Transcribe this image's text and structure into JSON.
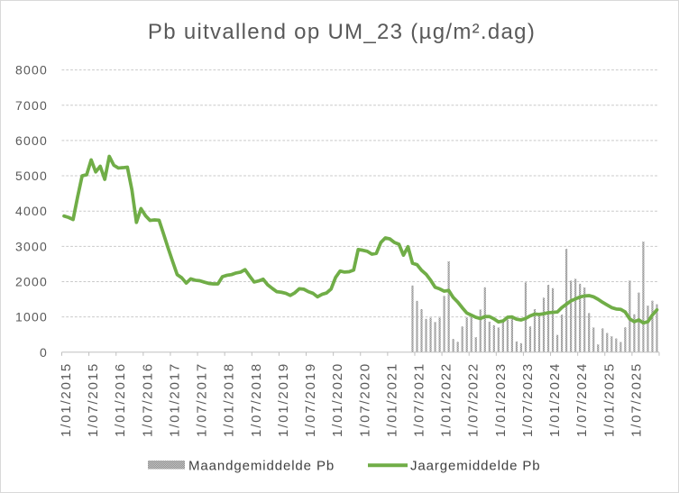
{
  "chart_data": {
    "type": "combo",
    "title": "Pb uitvallend op UM_23 (µg/m².dag)",
    "xlabel": "",
    "ylabel": "",
    "ylim": [
      0,
      8000
    ],
    "ytick_step": 1000,
    "ytick_labels": [
      "0",
      "1000",
      "2000",
      "3000",
      "4000",
      "5000",
      "6000",
      "7000",
      "8000"
    ],
    "xtick_every": 6,
    "grid": "horizontal-dashed",
    "legend_position": "bottom",
    "categories": [
      "1/01/2015",
      "1/02/2015",
      "1/03/2015",
      "1/04/2015",
      "1/05/2015",
      "1/06/2015",
      "1/07/2015",
      "1/08/2015",
      "1/09/2015",
      "1/10/2015",
      "1/11/2015",
      "1/12/2015",
      "1/01/2016",
      "1/02/2016",
      "1/03/2016",
      "1/04/2016",
      "1/05/2016",
      "1/06/2016",
      "1/07/2016",
      "1/08/2016",
      "1/09/2016",
      "1/10/2016",
      "1/11/2016",
      "1/12/2016",
      "1/01/2017",
      "1/02/2017",
      "1/03/2017",
      "1/04/2017",
      "1/05/2017",
      "1/06/2017",
      "1/07/2017",
      "1/08/2017",
      "1/09/2017",
      "1/10/2017",
      "1/11/2017",
      "1/12/2017",
      "1/01/2018",
      "1/02/2018",
      "1/03/2018",
      "1/04/2018",
      "1/05/2018",
      "1/06/2018",
      "1/07/2018",
      "1/08/2018",
      "1/09/2018",
      "1/10/2018",
      "1/11/2018",
      "1/12/2018",
      "1/01/2019",
      "1/02/2019",
      "1/03/2019",
      "1/04/2019",
      "1/05/2019",
      "1/06/2019",
      "1/07/2019",
      "1/08/2019",
      "1/09/2019",
      "1/10/2019",
      "1/11/2019",
      "1/12/2019",
      "1/01/2020",
      "1/02/2020",
      "1/03/2020",
      "1/04/2020",
      "1/05/2020",
      "1/06/2020",
      "1/07/2020",
      "1/08/2020",
      "1/09/2020",
      "1/10/2020",
      "1/11/2020",
      "1/12/2020",
      "1/01/2021",
      "1/02/2021",
      "1/03/2021",
      "1/04/2021",
      "1/05/2021",
      "1/06/2021",
      "1/07/2021",
      "1/08/2021",
      "1/09/2021",
      "1/10/2021",
      "1/11/2021",
      "1/12/2021",
      "1/01/2022",
      "1/02/2022",
      "1/03/2022",
      "1/04/2022",
      "1/05/2022",
      "1/06/2022",
      "1/07/2022",
      "1/08/2022",
      "1/09/2022",
      "1/10/2022",
      "1/11/2022",
      "1/12/2022",
      "1/01/2023",
      "1/02/2023",
      "1/03/2023",
      "1/04/2023",
      "1/05/2023",
      "1/06/2023",
      "1/07/2023",
      "1/08/2023",
      "1/09/2023",
      "1/10/2023",
      "1/11/2023",
      "1/12/2023",
      "1/01/2024",
      "1/02/2024",
      "1/03/2024",
      "1/04/2024",
      "1/05/2024",
      "1/06/2024",
      "1/07/2024",
      "1/08/2024",
      "1/09/2024",
      "1/10/2024",
      "1/11/2024",
      "1/12/2024",
      "1/01/2025",
      "1/02/2025",
      "1/03/2025",
      "1/04/2025",
      "1/05/2025",
      "1/06/2025",
      "1/07/2025",
      "1/08/2025",
      "1/09/2025",
      "1/10/2025",
      "1/11/2025",
      "1/12/2025"
    ],
    "series": [
      {
        "name": "Maandgemiddelde Pb",
        "type": "bar",
        "color": "#a6a6a6",
        "pattern": "dotted",
        "values": [
          null,
          null,
          null,
          null,
          null,
          null,
          null,
          null,
          null,
          null,
          null,
          null,
          null,
          null,
          null,
          null,
          null,
          null,
          null,
          null,
          null,
          null,
          null,
          null,
          null,
          null,
          null,
          null,
          null,
          null,
          null,
          null,
          null,
          null,
          null,
          null,
          null,
          null,
          null,
          null,
          null,
          null,
          null,
          null,
          null,
          null,
          null,
          null,
          null,
          null,
          null,
          null,
          null,
          null,
          null,
          null,
          null,
          null,
          null,
          null,
          null,
          null,
          null,
          null,
          null,
          null,
          null,
          null,
          null,
          null,
          null,
          null,
          null,
          null,
          null,
          null,
          null,
          1890,
          1455,
          1220,
          945,
          980,
          855,
          980,
          1595,
          2575,
          375,
          295,
          730,
          985,
          990,
          425,
          1210,
          1840,
          865,
          765,
          700,
          850,
          930,
          950,
          305,
          255,
          1980,
          730,
          1220,
          1085,
          1545,
          1910,
          1815,
          490,
          1065,
          2930,
          2030,
          2080,
          1940,
          1835,
          1110,
          700,
          220,
          675,
          545,
          450,
          390,
          290,
          705,
          2030,
          1075,
          1690,
          3135,
          1320,
          1460,
          1360
        ]
      },
      {
        "name": "Jaargemiddelde Pb",
        "type": "line",
        "color": "#70ad47",
        "values": [
          3860,
          3820,
          3760,
          4400,
          5000,
          5030,
          5450,
          5110,
          5270,
          4900,
          5550,
          5300,
          5220,
          5230,
          5245,
          4600,
          3680,
          4070,
          3870,
          3735,
          3750,
          3740,
          3350,
          2950,
          2570,
          2200,
          2110,
          1960,
          2080,
          2040,
          2025,
          1985,
          1950,
          1935,
          1935,
          2140,
          2180,
          2200,
          2245,
          2270,
          2340,
          2160,
          1990,
          2020,
          2070,
          1910,
          1810,
          1715,
          1700,
          1670,
          1610,
          1685,
          1800,
          1785,
          1715,
          1670,
          1570,
          1640,
          1680,
          1790,
          2120,
          2300,
          2270,
          2280,
          2330,
          2910,
          2890,
          2860,
          2780,
          2800,
          3110,
          3240,
          3210,
          3110,
          3060,
          2750,
          2990,
          2520,
          2480,
          2320,
          2210,
          2040,
          1840,
          1795,
          1730,
          1750,
          1550,
          1420,
          1260,
          1110,
          1050,
          990,
          955,
          1010,
          1010,
          945,
          860,
          885,
          990,
          1000,
          935,
          915,
          960,
          1030,
          1080,
          1070,
          1090,
          1120,
          1130,
          1140,
          1265,
          1360,
          1455,
          1510,
          1565,
          1595,
          1605,
          1570,
          1500,
          1415,
          1340,
          1265,
          1225,
          1215,
          1140,
          945,
          865,
          915,
          830,
          865,
          1055,
          1200
        ]
      }
    ]
  },
  "legend": {
    "bar_label": "Maandgemiddelde Pb",
    "line_label": "Jaargemiddelde Pb"
  },
  "colors": {
    "line_series": "#70ad47",
    "bar_series": "#a6a6a6",
    "gridline": "#c9c9c9",
    "axis_line": "#bfbfbf",
    "tick_label": "#595959",
    "title": "#595959",
    "legend_text": "#404040",
    "chart_border": "#d9d9d9",
    "background": "#ffffff"
  }
}
